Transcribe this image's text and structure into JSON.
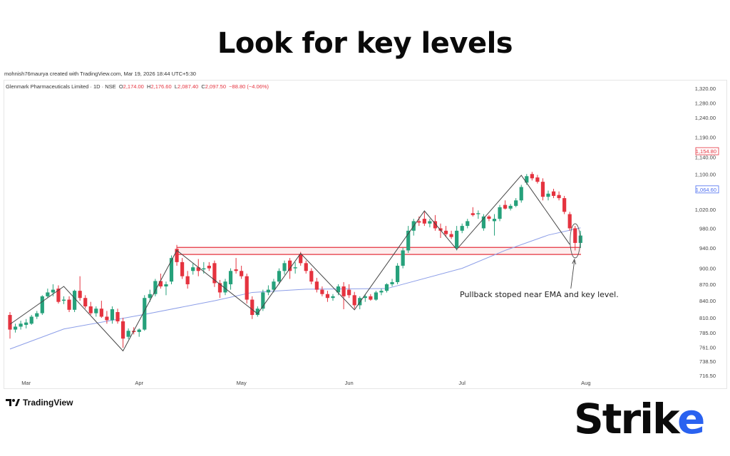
{
  "title": "Look for key levels",
  "credit": "mohnish76maurya created with TradingView.com, Mar 19, 2026 18:44 UTC+5:30",
  "legend": {
    "symbol": "Glenmark Pharmaceuticals Limited · 1D · NSE",
    "o_label": "O",
    "o": "2,174.00",
    "h_label": "H",
    "h": "2,176.60",
    "l_label": "L",
    "l": "2,087.40",
    "c_label": "C",
    "c": "2,097.50",
    "change": "−88.80 (−4.06%)"
  },
  "annotation": "Pullback stoped near EMA and key level.",
  "branding": {
    "tradingview": "TradingView",
    "logo_strike": "Strike"
  },
  "colors": {
    "up": "#26a17b",
    "down": "#e5333f",
    "ema": "#8c9ee8",
    "level": "#e5333f",
    "zigzag": "#444444",
    "accent": "#2a62f0"
  },
  "chart_data": {
    "type": "candlestick",
    "y_scale": "log",
    "ylim": [
      706,
      1345
    ],
    "y_ticks": [
      "1,320.00",
      "1,280.00",
      "1,240.00",
      "1,190.00",
      "1,140.00",
      "1,100.00",
      "1,020.00",
      "980.00",
      "940.00",
      "900.00",
      "870.00",
      "840.00",
      "810.00",
      "785.00",
      "761.00",
      "738.50",
      "716.50"
    ],
    "y_tick_values": [
      1320,
      1280,
      1240,
      1190,
      1140,
      1100,
      1020,
      980,
      940,
      900,
      870,
      840,
      810,
      785,
      761,
      738.5,
      716.5
    ],
    "price_tags": [
      {
        "label": "1,154.80",
        "value": 1154.8,
        "color": "#e5333f"
      },
      {
        "label": "1,064.60",
        "value": 1064.6,
        "color": "#4a6cf0"
      }
    ],
    "months": [
      {
        "label": "Mar",
        "bar": 3
      },
      {
        "label": "Apr",
        "bar": 24
      },
      {
        "label": "May",
        "bar": 43
      },
      {
        "label": "Jun",
        "bar": 63
      },
      {
        "label": "Jul",
        "bar": 84
      },
      {
        "label": "Aug",
        "bar": 107
      }
    ],
    "ohlc": [
      [
        815,
        820,
        775,
        790
      ],
      [
        790,
        800,
        785,
        795
      ],
      [
        795,
        805,
        790,
        800
      ],
      [
        798,
        808,
        792,
        802
      ],
      [
        800,
        815,
        798,
        812
      ],
      [
        812,
        822,
        808,
        818
      ],
      [
        818,
        850,
        815,
        848
      ],
      [
        848,
        862,
        845,
        855
      ],
      [
        855,
        870,
        848,
        860
      ],
      [
        862,
        868,
        835,
        838
      ],
      [
        840,
        848,
        834,
        842
      ],
      [
        842,
        848,
        820,
        824
      ],
      [
        824,
        860,
        820,
        858
      ],
      [
        858,
        885,
        840,
        845
      ],
      [
        845,
        850,
        826,
        830
      ],
      [
        830,
        838,
        815,
        818
      ],
      [
        818,
        830,
        812,
        826
      ],
      [
        826,
        840,
        810,
        812
      ],
      [
        812,
        822,
        800,
        806
      ],
      [
        806,
        830,
        800,
        825
      ],
      [
        820,
        826,
        800,
        804
      ],
      [
        804,
        810,
        760,
        775
      ],
      [
        778,
        792,
        774,
        788
      ],
      [
        788,
        794,
        782,
        786
      ],
      [
        786,
        792,
        778,
        790
      ],
      [
        790,
        850,
        788,
        845
      ],
      [
        845,
        860,
        838,
        852
      ],
      [
        852,
        880,
        848,
        876
      ],
      [
        876,
        890,
        862,
        866
      ],
      [
        866,
        875,
        850,
        870
      ],
      [
        875,
        925,
        870,
        920
      ],
      [
        938,
        946,
        905,
        912
      ],
      [
        912,
        920,
        880,
        885
      ],
      [
        885,
        895,
        862,
        870
      ],
      [
        895,
        910,
        888,
        902
      ],
      [
        902,
        918,
        885,
        895
      ],
      [
        898,
        912,
        890,
        900
      ],
      [
        905,
        912,
        895,
        900
      ],
      [
        910,
        915,
        865,
        872
      ],
      [
        872,
        878,
        845,
        855
      ],
      [
        855,
        880,
        850,
        875
      ],
      [
        870,
        900,
        860,
        895
      ],
      [
        898,
        920,
        890,
        895
      ],
      [
        895,
        905,
        880,
        885
      ],
      [
        885,
        890,
        835,
        842
      ],
      [
        842,
        848,
        808,
        815
      ],
      [
        815,
        830,
        812,
        826
      ],
      [
        826,
        860,
        822,
        855
      ],
      [
        855,
        868,
        850,
        860
      ],
      [
        860,
        880,
        855,
        875
      ],
      [
        875,
        900,
        870,
        895
      ],
      [
        895,
        915,
        888,
        910
      ],
      [
        915,
        920,
        880,
        895
      ],
      [
        900,
        912,
        890,
        902
      ],
      [
        928,
        932,
        905,
        910
      ],
      [
        910,
        915,
        890,
        895
      ],
      [
        895,
        900,
        870,
        875
      ],
      [
        875,
        882,
        855,
        860
      ],
      [
        860,
        866,
        848,
        852
      ],
      [
        852,
        858,
        838,
        845
      ],
      [
        845,
        852,
        840,
        848
      ],
      [
        855,
        870,
        850,
        866
      ],
      [
        866,
        874,
        825,
        848
      ],
      [
        860,
        870,
        845,
        850
      ],
      [
        850,
        856,
        826,
        832
      ],
      [
        832,
        848,
        825,
        845
      ],
      [
        845,
        852,
        838,
        848
      ],
      [
        848,
        852,
        840,
        842
      ],
      [
        842,
        858,
        840,
        855
      ],
      [
        855,
        862,
        850,
        858
      ],
      [
        858,
        872,
        855,
        870
      ],
      [
        870,
        880,
        866,
        874
      ],
      [
        874,
        910,
        870,
        905
      ],
      [
        905,
        940,
        900,
        935
      ],
      [
        935,
        985,
        930,
        975
      ],
      [
        975,
        1000,
        965,
        995
      ],
      [
        995,
        1005,
        985,
        992
      ],
      [
        1000,
        1015,
        985,
        990
      ],
      [
        990,
        1000,
        982,
        995
      ],
      [
        995,
        1008,
        975,
        980
      ],
      [
        980,
        990,
        960,
        975
      ],
      [
        975,
        985,
        962,
        968
      ],
      [
        968,
        975,
        958,
        962
      ],
      [
        940,
        985,
        935,
        975
      ],
      [
        975,
        990,
        970,
        985
      ],
      [
        985,
        1000,
        980,
        995
      ],
      [
        1012,
        1025,
        1005,
        1008
      ],
      [
        1010,
        1018,
        1000,
        1012
      ],
      [
        980,
        1010,
        975,
        1005
      ],
      [
        1005,
        1008,
        995,
        1000
      ],
      [
        995,
        1010,
        965,
        1000
      ],
      [
        1000,
        1030,
        995,
        1025
      ],
      [
        1030,
        1040,
        1020,
        1022
      ],
      [
        1022,
        1032,
        1018,
        1028
      ],
      [
        1028,
        1045,
        1025,
        1040
      ],
      [
        1040,
        1075,
        1035,
        1070
      ],
      [
        1080,
        1100,
        1075,
        1095
      ],
      [
        1100,
        1105,
        1085,
        1090
      ],
      [
        1092,
        1098,
        1078,
        1082
      ],
      [
        1082,
        1090,
        1040,
        1048
      ],
      [
        1048,
        1062,
        1040,
        1055
      ],
      [
        1060,
        1066,
        1045,
        1050
      ],
      [
        1052,
        1060,
        1040,
        1045
      ],
      [
        1045,
        1050,
        1010,
        1015
      ],
      [
        1010,
        1015,
        975,
        980
      ],
      [
        980,
        985,
        935,
        950
      ],
      [
        950,
        975,
        940,
        965
      ]
    ],
    "ema": [
      [
        0,
        758
      ],
      [
        10,
        791
      ],
      [
        25,
        816
      ],
      [
        38,
        840
      ],
      [
        45,
        855
      ],
      [
        55,
        861
      ],
      [
        70,
        862
      ],
      [
        84,
        900
      ],
      [
        92,
        935
      ],
      [
        100,
        966
      ],
      [
        106,
        981
      ]
    ],
    "zigzag": [
      [
        0,
        799
      ],
      [
        10,
        866
      ],
      [
        21,
        755
      ],
      [
        31,
        935
      ],
      [
        46,
        817
      ],
      [
        54,
        929
      ],
      [
        64,
        824
      ],
      [
        77,
        1017
      ],
      [
        83,
        937
      ],
      [
        95,
        1097
      ],
      [
        104,
        947
      ]
    ],
    "key_levels": [
      {
        "from_bar": 31,
        "value": 941
      },
      {
        "from_bar": 31,
        "value": 927
      }
    ],
    "highlight_bar": 105
  }
}
